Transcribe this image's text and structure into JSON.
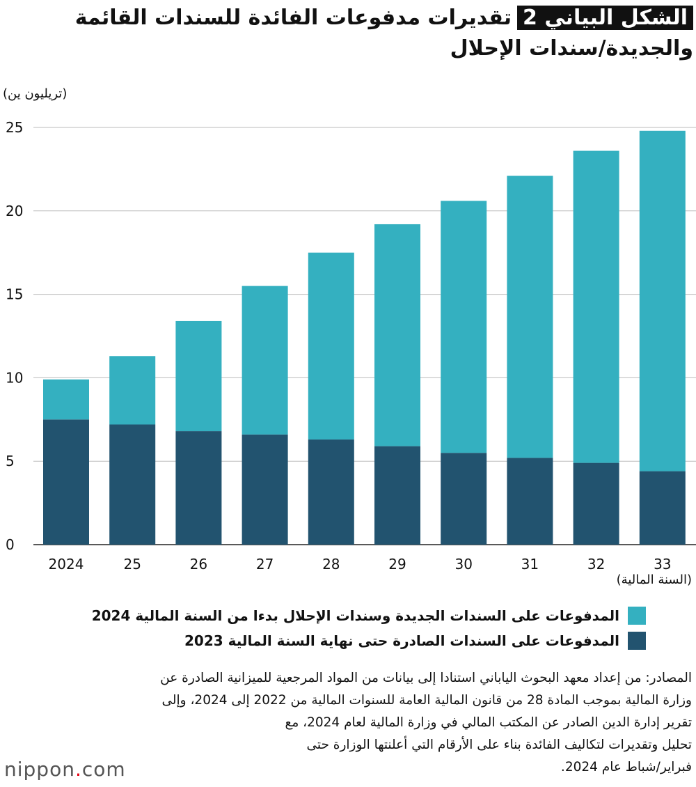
{
  "title": {
    "tag": "الشكل البياني 2",
    "text": "تقديرات مدفوعات الفائدة للسندات القائمة والجديدة/سندات الإحلال"
  },
  "chart_data": {
    "type": "bar",
    "stacked": true,
    "ylabel": "(تريليون ين)",
    "xlabel": "(السنة المالية)",
    "categories": [
      "2024",
      "25",
      "26",
      "27",
      "28",
      "29",
      "30",
      "31",
      "32",
      "33"
    ],
    "ylim": [
      0,
      25
    ],
    "yticks": [
      "0",
      "5",
      "10",
      "15",
      "20",
      "25"
    ],
    "grid": true,
    "legend_position": "bottom",
    "series": [
      {
        "name": "المدفوعات على السندات الصادرة حتى نهاية السنة المالية 2023",
        "color": "#22536f",
        "values": [
          7.5,
          7.2,
          6.8,
          6.6,
          6.3,
          5.9,
          5.5,
          5.2,
          4.9,
          4.4
        ]
      },
      {
        "name": "المدفوعات على السندات الجديدة وسندات الإحلال بدءا من السنة المالية 2024",
        "color": "#34b0c0",
        "values": [
          2.4,
          4.1,
          6.6,
          8.9,
          11.2,
          13.3,
          15.1,
          16.9,
          18.7,
          20.4
        ]
      }
    ]
  },
  "notes": [
    "المصادر: من إعداد معهد البحوث الياباني استنادا إلى بيانات من المواد المرجعية للميزانية الصادرة عن",
    "وزارة المالية بموجب المادة 28 من قانون المالية العامة للسنوات المالية من 2022 إلى 2024، وإلى",
    "تقرير إدارة الدين الصادر عن المكتب المالي في وزارة المالية لعام 2024، مع",
    "تحليل وتقديرات لتكاليف الفائدة بناء على الأرقام التي أعلنتها الوزارة حتى",
    "فبراير/شباط عام 2024."
  ],
  "logo": {
    "main": "nippon",
    "dot": ".",
    "tail": "com"
  }
}
